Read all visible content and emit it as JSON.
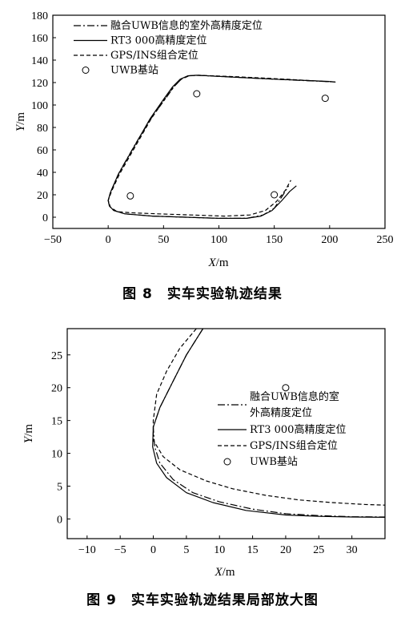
{
  "chart_data": [
    {
      "type": "line",
      "title": "",
      "caption": "图 8　实车实验轨迹结果",
      "xlabel": "X/m",
      "ylabel": "Y/m",
      "xlim": [
        -50,
        250
      ],
      "ylim": [
        -10,
        180
      ],
      "xticks": [
        -50,
        0,
        50,
        100,
        150,
        200,
        250
      ],
      "yticks": [
        0,
        20,
        40,
        60,
        80,
        100,
        120,
        140,
        160,
        180
      ],
      "legend_position": "top-left",
      "series": [
        {
          "name": "融合UWB信息的室外高精度定位",
          "style": "dash-dot",
          "points": [
            [
              200,
              121
            ],
            [
              205,
              120.5
            ],
            [
              190,
              121.2
            ],
            [
              150,
              123
            ],
            [
              110,
              125
            ],
            [
              80,
              126.5
            ],
            [
              72,
              126
            ],
            [
              66,
              123
            ],
            [
              60,
              117
            ],
            [
              52,
              106
            ],
            [
              40,
              90
            ],
            [
              25,
              66
            ],
            [
              10,
              40
            ],
            [
              2,
              22
            ],
            [
              0,
              15
            ],
            [
              1,
              10
            ],
            [
              5,
              6
            ],
            [
              15,
              3
            ],
            [
              40,
              1
            ],
            [
              70,
              0
            ],
            [
              100,
              -1
            ],
            [
              125,
              -1
            ],
            [
              140,
              2
            ],
            [
              150,
              8
            ],
            [
              158,
              20
            ],
            [
              163,
              28
            ]
          ]
        },
        {
          "name": "RT3 000高精度定位",
          "style": "solid",
          "points": [
            [
              200,
              121
            ],
            [
              150,
              123
            ],
            [
              110,
              125
            ],
            [
              80,
              126.5
            ],
            [
              72,
              126
            ],
            [
              65,
              123
            ],
            [
              58,
              116
            ],
            [
              50,
              105
            ],
            [
              38,
              88
            ],
            [
              24,
              64
            ],
            [
              9,
              38
            ],
            [
              2,
              22
            ],
            [
              0,
              15
            ],
            [
              1,
              10
            ],
            [
              5,
              6
            ],
            [
              15,
              3
            ],
            [
              40,
              1
            ],
            [
              70,
              0
            ],
            [
              100,
              -1
            ],
            [
              125,
              -1
            ],
            [
              138,
              1
            ],
            [
              148,
              6
            ],
            [
              157,
              15
            ],
            [
              164,
              23
            ],
            [
              170,
              28
            ]
          ]
        },
        {
          "name": "GPS/INS组合定位",
          "style": "dashed",
          "points": [
            [
              205,
              120.5
            ],
            [
              160,
              123
            ],
            [
              120,
              125
            ],
            [
              82,
              126.5
            ],
            [
              73,
              126
            ],
            [
              66,
              123
            ],
            [
              59,
              116
            ],
            [
              51,
              105
            ],
            [
              39,
              88
            ],
            [
              25,
              64
            ],
            [
              10,
              38
            ],
            [
              3,
              23
            ],
            [
              0,
              15
            ],
            [
              2,
              9
            ],
            [
              8,
              5
            ],
            [
              20,
              4
            ],
            [
              45,
              3
            ],
            [
              75,
              2
            ],
            [
              105,
              1
            ],
            [
              128,
              2
            ],
            [
              142,
              6
            ],
            [
              152,
              14
            ],
            [
              160,
              24
            ],
            [
              165,
              33
            ]
          ]
        },
        {
          "name": "UWB基站",
          "style": "circle-markers",
          "points": [
            [
              20,
              19
            ],
            [
              80,
              110
            ],
            [
              150,
              20
            ],
            [
              196,
              106
            ]
          ]
        }
      ]
    },
    {
      "type": "line",
      "title": "",
      "caption": "图 9　实车实验轨迹结果局部放大图",
      "xlabel": "X/m",
      "ylabel": "Y/m",
      "xlim": [
        -13,
        35
      ],
      "ylim": [
        -3,
        29
      ],
      "xticks": [
        -10,
        -5,
        0,
        5,
        10,
        15,
        20,
        25,
        30
      ],
      "yticks": [
        0,
        5,
        10,
        15,
        20,
        25
      ],
      "legend_position": "right",
      "series": [
        {
          "name": "融合UWB信息的室外高精度定位",
          "style": "dash-dot",
          "points": [
            [
              7.5,
              29
            ],
            [
              5,
              25
            ],
            [
              3,
              21
            ],
            [
              1,
              17
            ],
            [
              0,
              14
            ],
            [
              0.2,
              11
            ],
            [
              1,
              8.5
            ],
            [
              3,
              6
            ],
            [
              6,
              4
            ],
            [
              10,
              2.6
            ],
            [
              15,
              1.5
            ],
            [
              20,
              0.8
            ],
            [
              25,
              0.5
            ],
            [
              30,
              0.35
            ],
            [
              35,
              0.3
            ]
          ]
        },
        {
          "name": "RT3 000高精度定位",
          "style": "solid",
          "points": [
            [
              7.5,
              29
            ],
            [
              5,
              25
            ],
            [
              3,
              21
            ],
            [
              1,
              17
            ],
            [
              0,
              14
            ],
            [
              -0.1,
              11
            ],
            [
              0.5,
              8.5
            ],
            [
              2,
              6.3
            ],
            [
              5,
              4
            ],
            [
              9,
              2.5
            ],
            [
              14,
              1.3
            ],
            [
              20,
              0.6
            ],
            [
              25,
              0.4
            ],
            [
              30,
              0.3
            ],
            [
              35,
              0.25
            ]
          ]
        },
        {
          "name": "GPS/INS组合定位",
          "style": "dashed",
          "points": [
            [
              6.5,
              29
            ],
            [
              4,
              26
            ],
            [
              2,
              22.5
            ],
            [
              0.5,
              19
            ],
            [
              0,
              15
            ],
            [
              0,
              12
            ],
            [
              1.5,
              9.5
            ],
            [
              4,
              7.5
            ],
            [
              8,
              5.8
            ],
            [
              12,
              4.6
            ],
            [
              17,
              3.6
            ],
            [
              22,
              2.9
            ],
            [
              27,
              2.5
            ],
            [
              32,
              2.2
            ],
            [
              35,
              2.1
            ]
          ]
        },
        {
          "name": "UWB基站",
          "style": "circle-markers",
          "points": [
            [
              20,
              20
            ]
          ]
        }
      ]
    }
  ]
}
